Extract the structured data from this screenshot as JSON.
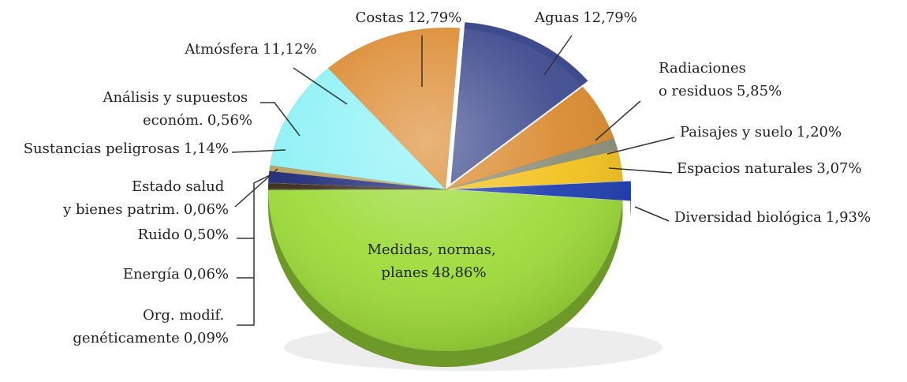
{
  "chart_data": {
    "type": "pie",
    "categories": [
      "Aguas",
      "Radiaciones o residuos",
      "Paisajes y suelo",
      "Espacios naturales",
      "Diversidad biológica",
      "Medidas, normas, planes",
      "Org. modif. genéticamente",
      "Energía",
      "Ruido",
      "Estado salud y bienes patrim.",
      "Sustancias peligrosas",
      "Análisis y supuestos económ.",
      "Atmósfera",
      "Costas"
    ],
    "values": [
      12.79,
      5.85,
      1.2,
      3.07,
      1.93,
      48.86,
      0.09,
      0.06,
      0.5,
      0.06,
      1.14,
      0.56,
      11.12,
      12.79
    ],
    "value_labels": [
      "12,79%",
      "5,85%",
      "1,20%",
      "3,07%",
      "1,93%",
      "48,86%",
      "0,09%",
      "0,06%",
      "0,50%",
      "0,06%",
      "1,14%",
      "0,56%",
      "11,12%",
      "12,79%"
    ],
    "colors": [
      "#3e4b8e",
      "#d98a2e",
      "#8a8f78",
      "#f2c21e",
      "#1f3fb0",
      "#9ddc3a",
      "#5a4a2a",
      "#2a2a2a",
      "#3b2a1a",
      "#6a5a3a",
      "#1e2a78",
      "#b8a060",
      "#8ff2f6",
      "#dc8c32"
    ]
  }
}
